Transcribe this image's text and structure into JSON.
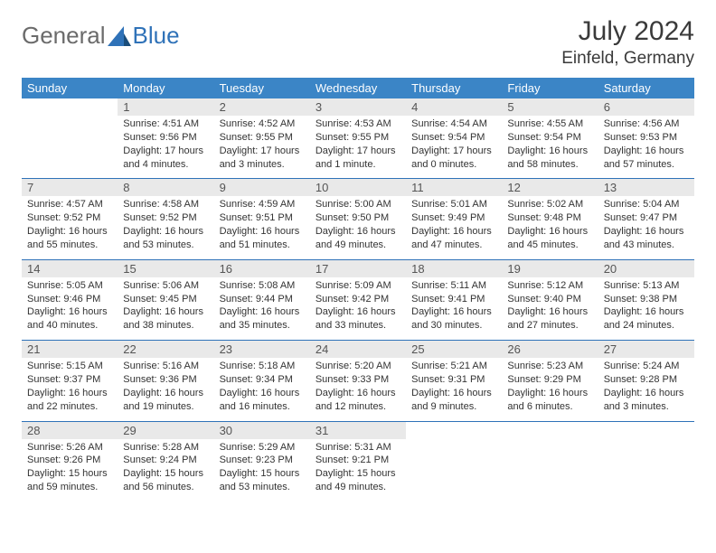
{
  "logo": {
    "text1": "General",
    "text2": "Blue"
  },
  "title": "July 2024",
  "location": "Einfeld, Germany",
  "colors": {
    "header_bg": "#3b85c6",
    "header_text": "#ffffff",
    "daynum_bg": "#e9e9e9",
    "daynum_text": "#555555",
    "separator": "#2f72b8",
    "body_text": "#333333",
    "logo_gray": "#6b6b6b",
    "logo_blue": "#2f72b8",
    "background": "#ffffff"
  },
  "typography": {
    "title_size": 30,
    "location_size": 19,
    "header_size": 13,
    "daynum_size": 13,
    "cell_size": 11
  },
  "day_headers": [
    "Sunday",
    "Monday",
    "Tuesday",
    "Wednesday",
    "Thursday",
    "Friday",
    "Saturday"
  ],
  "weeks": [
    [
      null,
      {
        "n": "1",
        "sr": "Sunrise: 4:51 AM",
        "ss": "Sunset: 9:56 PM",
        "dl": "Daylight: 17 hours and 4 minutes."
      },
      {
        "n": "2",
        "sr": "Sunrise: 4:52 AM",
        "ss": "Sunset: 9:55 PM",
        "dl": "Daylight: 17 hours and 3 minutes."
      },
      {
        "n": "3",
        "sr": "Sunrise: 4:53 AM",
        "ss": "Sunset: 9:55 PM",
        "dl": "Daylight: 17 hours and 1 minute."
      },
      {
        "n": "4",
        "sr": "Sunrise: 4:54 AM",
        "ss": "Sunset: 9:54 PM",
        "dl": "Daylight: 17 hours and 0 minutes."
      },
      {
        "n": "5",
        "sr": "Sunrise: 4:55 AM",
        "ss": "Sunset: 9:54 PM",
        "dl": "Daylight: 16 hours and 58 minutes."
      },
      {
        "n": "6",
        "sr": "Sunrise: 4:56 AM",
        "ss": "Sunset: 9:53 PM",
        "dl": "Daylight: 16 hours and 57 minutes."
      }
    ],
    [
      {
        "n": "7",
        "sr": "Sunrise: 4:57 AM",
        "ss": "Sunset: 9:52 PM",
        "dl": "Daylight: 16 hours and 55 minutes."
      },
      {
        "n": "8",
        "sr": "Sunrise: 4:58 AM",
        "ss": "Sunset: 9:52 PM",
        "dl": "Daylight: 16 hours and 53 minutes."
      },
      {
        "n": "9",
        "sr": "Sunrise: 4:59 AM",
        "ss": "Sunset: 9:51 PM",
        "dl": "Daylight: 16 hours and 51 minutes."
      },
      {
        "n": "10",
        "sr": "Sunrise: 5:00 AM",
        "ss": "Sunset: 9:50 PM",
        "dl": "Daylight: 16 hours and 49 minutes."
      },
      {
        "n": "11",
        "sr": "Sunrise: 5:01 AM",
        "ss": "Sunset: 9:49 PM",
        "dl": "Daylight: 16 hours and 47 minutes."
      },
      {
        "n": "12",
        "sr": "Sunrise: 5:02 AM",
        "ss": "Sunset: 9:48 PM",
        "dl": "Daylight: 16 hours and 45 minutes."
      },
      {
        "n": "13",
        "sr": "Sunrise: 5:04 AM",
        "ss": "Sunset: 9:47 PM",
        "dl": "Daylight: 16 hours and 43 minutes."
      }
    ],
    [
      {
        "n": "14",
        "sr": "Sunrise: 5:05 AM",
        "ss": "Sunset: 9:46 PM",
        "dl": "Daylight: 16 hours and 40 minutes."
      },
      {
        "n": "15",
        "sr": "Sunrise: 5:06 AM",
        "ss": "Sunset: 9:45 PM",
        "dl": "Daylight: 16 hours and 38 minutes."
      },
      {
        "n": "16",
        "sr": "Sunrise: 5:08 AM",
        "ss": "Sunset: 9:44 PM",
        "dl": "Daylight: 16 hours and 35 minutes."
      },
      {
        "n": "17",
        "sr": "Sunrise: 5:09 AM",
        "ss": "Sunset: 9:42 PM",
        "dl": "Daylight: 16 hours and 33 minutes."
      },
      {
        "n": "18",
        "sr": "Sunrise: 5:11 AM",
        "ss": "Sunset: 9:41 PM",
        "dl": "Daylight: 16 hours and 30 minutes."
      },
      {
        "n": "19",
        "sr": "Sunrise: 5:12 AM",
        "ss": "Sunset: 9:40 PM",
        "dl": "Daylight: 16 hours and 27 minutes."
      },
      {
        "n": "20",
        "sr": "Sunrise: 5:13 AM",
        "ss": "Sunset: 9:38 PM",
        "dl": "Daylight: 16 hours and 24 minutes."
      }
    ],
    [
      {
        "n": "21",
        "sr": "Sunrise: 5:15 AM",
        "ss": "Sunset: 9:37 PM",
        "dl": "Daylight: 16 hours and 22 minutes."
      },
      {
        "n": "22",
        "sr": "Sunrise: 5:16 AM",
        "ss": "Sunset: 9:36 PM",
        "dl": "Daylight: 16 hours and 19 minutes."
      },
      {
        "n": "23",
        "sr": "Sunrise: 5:18 AM",
        "ss": "Sunset: 9:34 PM",
        "dl": "Daylight: 16 hours and 16 minutes."
      },
      {
        "n": "24",
        "sr": "Sunrise: 5:20 AM",
        "ss": "Sunset: 9:33 PM",
        "dl": "Daylight: 16 hours and 12 minutes."
      },
      {
        "n": "25",
        "sr": "Sunrise: 5:21 AM",
        "ss": "Sunset: 9:31 PM",
        "dl": "Daylight: 16 hours and 9 minutes."
      },
      {
        "n": "26",
        "sr": "Sunrise: 5:23 AM",
        "ss": "Sunset: 9:29 PM",
        "dl": "Daylight: 16 hours and 6 minutes."
      },
      {
        "n": "27",
        "sr": "Sunrise: 5:24 AM",
        "ss": "Sunset: 9:28 PM",
        "dl": "Daylight: 16 hours and 3 minutes."
      }
    ],
    [
      {
        "n": "28",
        "sr": "Sunrise: 5:26 AM",
        "ss": "Sunset: 9:26 PM",
        "dl": "Daylight: 15 hours and 59 minutes."
      },
      {
        "n": "29",
        "sr": "Sunrise: 5:28 AM",
        "ss": "Sunset: 9:24 PM",
        "dl": "Daylight: 15 hours and 56 minutes."
      },
      {
        "n": "30",
        "sr": "Sunrise: 5:29 AM",
        "ss": "Sunset: 9:23 PM",
        "dl": "Daylight: 15 hours and 53 minutes."
      },
      {
        "n": "31",
        "sr": "Sunrise: 5:31 AM",
        "ss": "Sunset: 9:21 PM",
        "dl": "Daylight: 15 hours and 49 minutes."
      },
      null,
      null,
      null
    ]
  ]
}
